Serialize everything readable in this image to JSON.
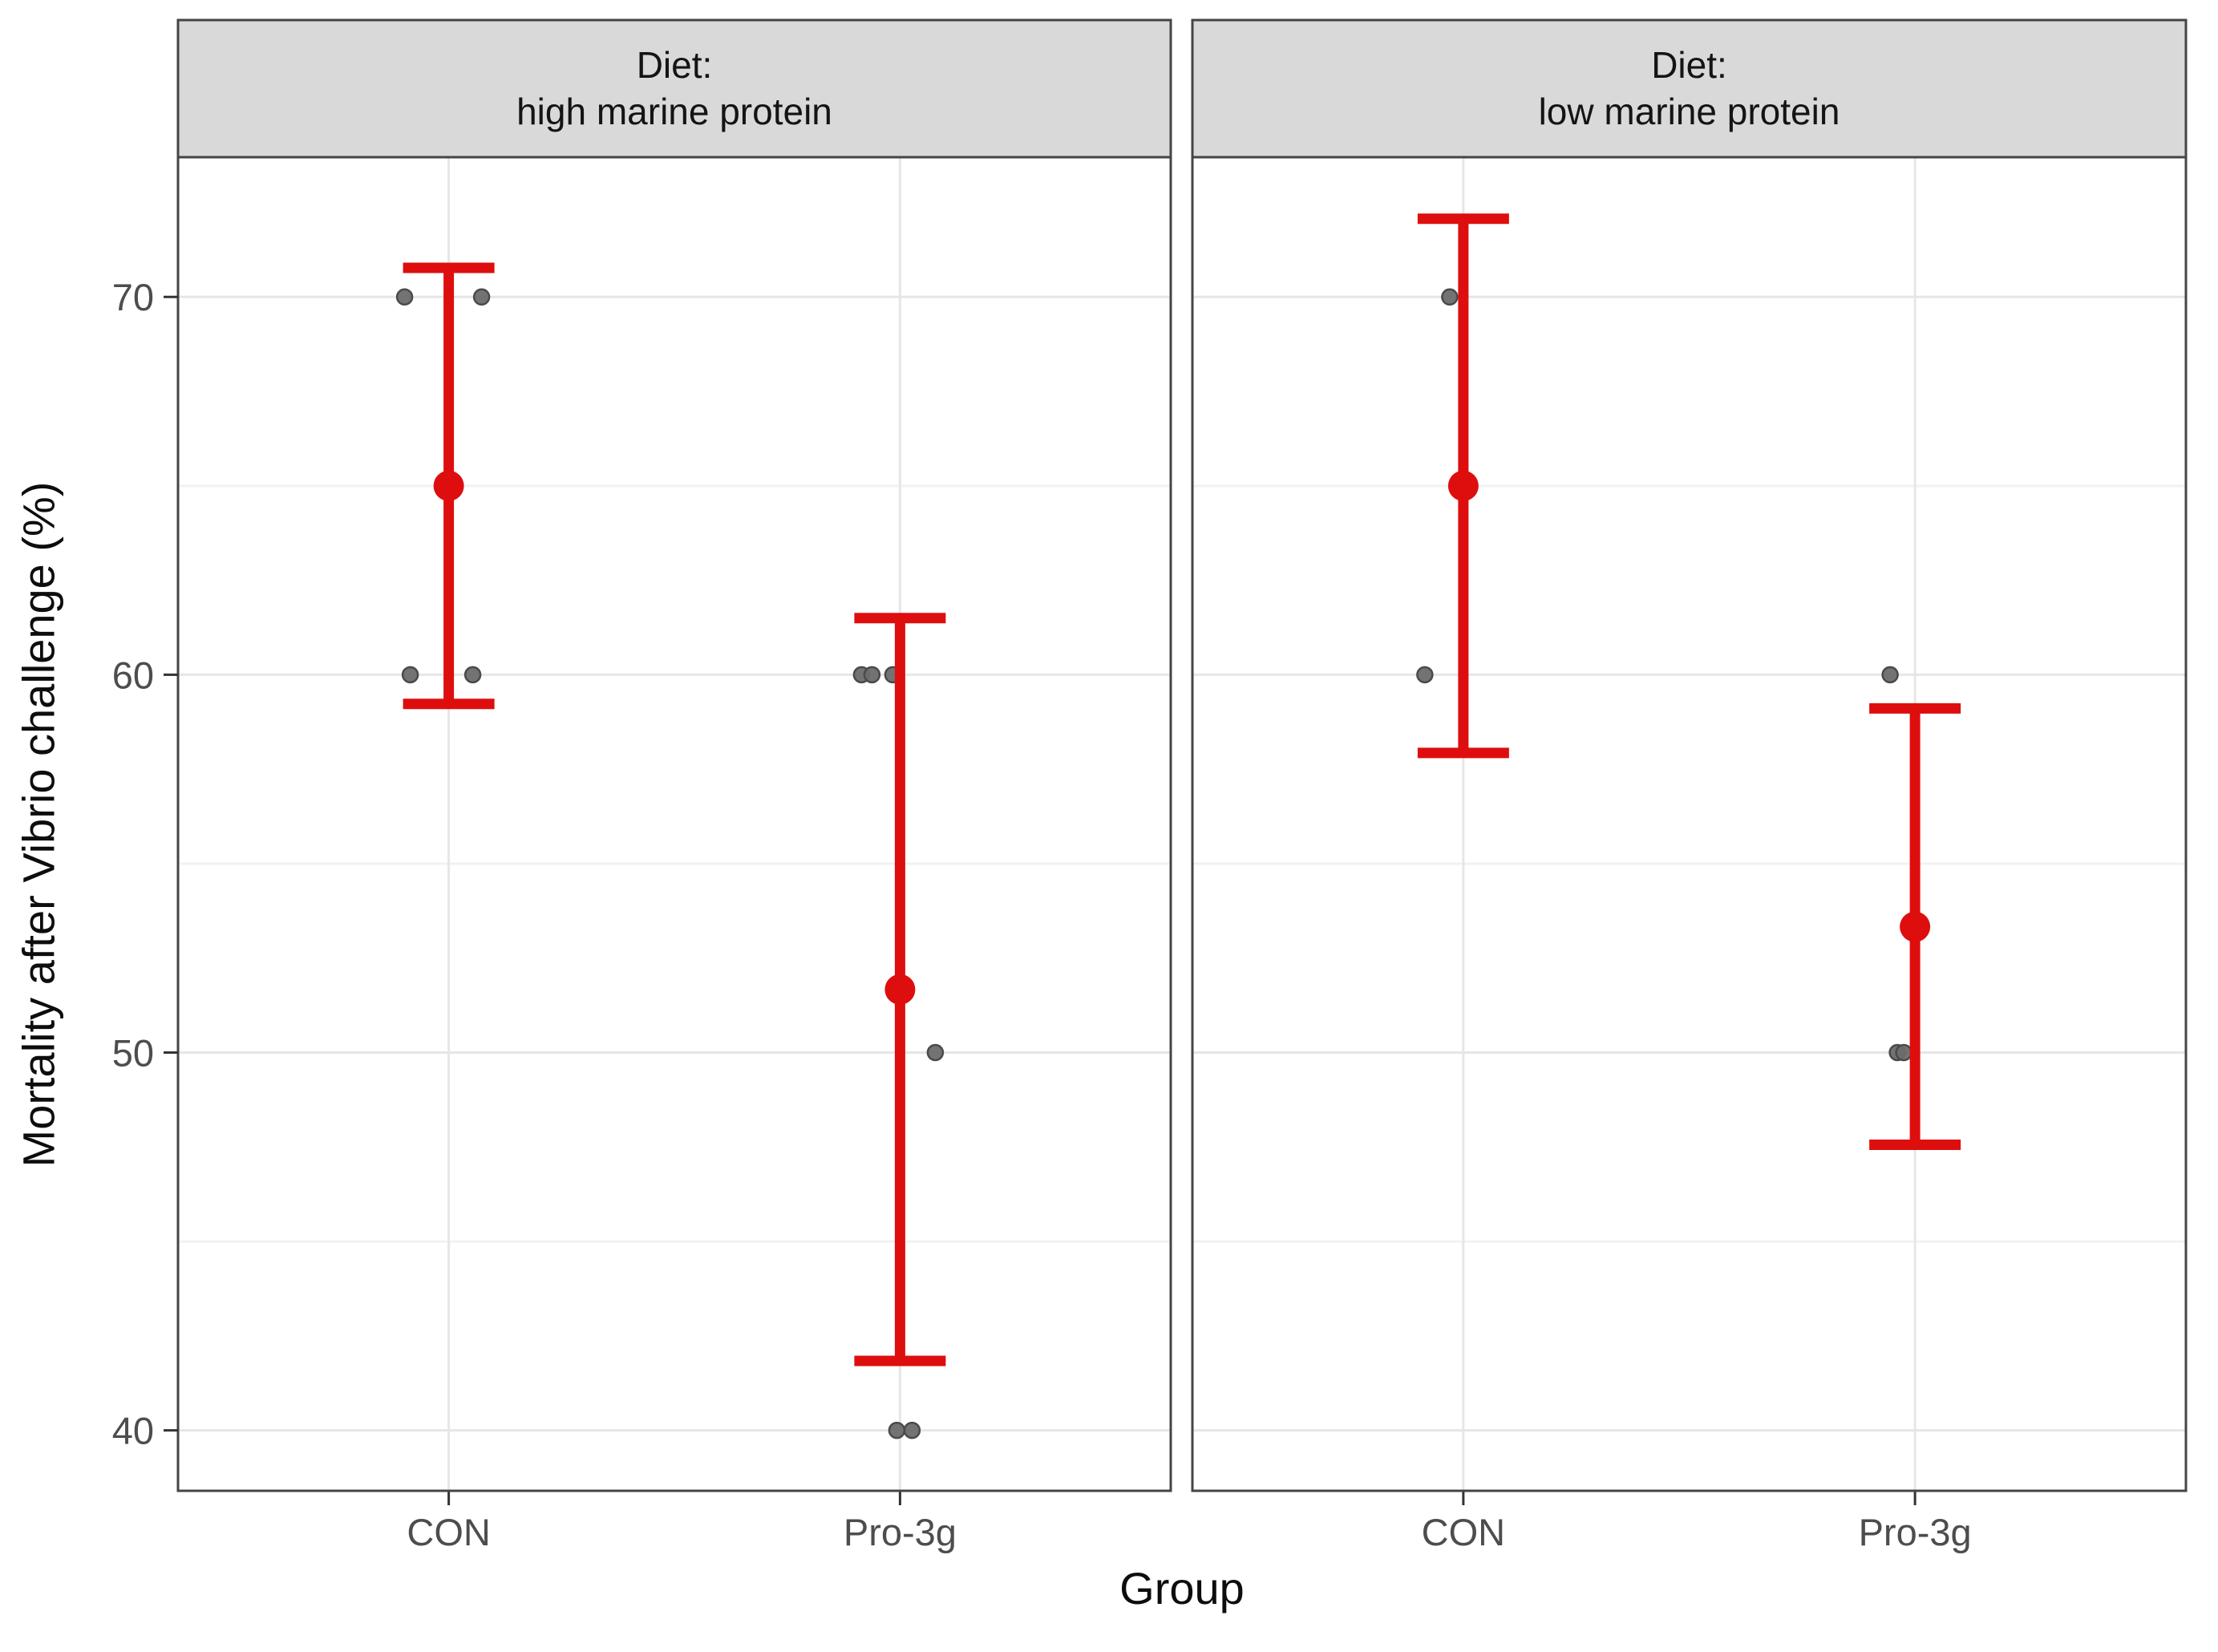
{
  "chart_data": {
    "type": "scatter",
    "title": "",
    "xlabel": "Group",
    "ylabel": "Mortality after Vibrio challenge (%)",
    "x_categories": [
      "CON",
      "Pro-3g"
    ],
    "y_ticks": [
      40,
      50,
      60,
      70
    ],
    "y_minor_ticks": [
      45,
      55,
      65
    ],
    "ylim": [
      38.4,
      73.7
    ],
    "legend_position": "none",
    "grid": "on",
    "facets": [
      {
        "strip_line1": "Diet:",
        "strip_line2": "high marine protein",
        "groups": [
          {
            "name": "CON",
            "values": [
              70,
              70,
              60,
              60
            ],
            "jitter_dx": [
              -55,
              41,
              -48,
              30
            ],
            "mean": 65.0,
            "sd": 5.77,
            "bar_low": 59.23,
            "bar_high": 70.77
          },
          {
            "name": "Pro-3g",
            "values": [
              60,
              60,
              60,
              50,
              40,
              40
            ],
            "jitter_dx": [
              -48,
              -35,
              -9,
              44,
              -4,
              15
            ],
            "mean": 51.67,
            "sd": 9.83,
            "bar_low": 41.84,
            "bar_high": 61.5
          }
        ]
      },
      {
        "strip_line1": "Diet:",
        "strip_line2": "low marine protein",
        "groups": [
          {
            "name": "CON",
            "values": [
              70,
              60
            ],
            "jitter_dx": [
              -17,
              -48
            ],
            "mean": 65.0,
            "sd": 7.07,
            "bar_low": 57.93,
            "bar_high": 72.07
          },
          {
            "name": "Pro-3g",
            "values": [
              60,
              50,
              50
            ],
            "jitter_dx": [
              -31,
              -22,
              -14
            ],
            "mean": 53.33,
            "sd": 5.77,
            "bar_low": 47.56,
            "bar_high": 59.11
          }
        ]
      }
    ]
  },
  "colors": {
    "mean_and_errorbar": "#DE0E0E",
    "data_point_fill": "#6b6b6b",
    "data_point_stroke": "#4a4a4a",
    "strip_fill": "#D9D9D9",
    "panel_border": "#454545",
    "grid_major": "#E6E6E6",
    "grid_minor": "#F2F2F2",
    "tick_mark": "#333333",
    "tick_label": "#4D4D4D",
    "axis_title": "#0d0d0d",
    "background": "#FFFFFF"
  }
}
